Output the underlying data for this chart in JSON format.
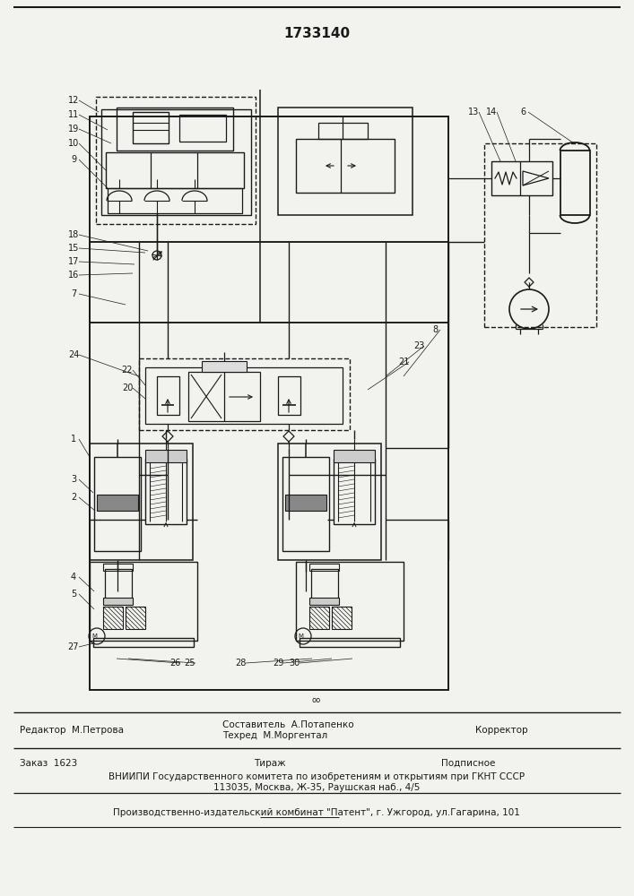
{
  "title": "1733140",
  "bg_color": "#f2f2ee",
  "lc": "#1a1a1a",
  "footer": {
    "editor": "Редактор  М.Петрова",
    "comp1": "Составитель  А.Потапенко",
    "comp2": "Техред  М.Моргентал",
    "corr": "Корректор",
    "order": "Заказ  1623",
    "tirazh": "Тираж",
    "podp": "Подписное",
    "vniip1": "ВНИИПИ Государственного комитета по изобретениям и открытиям при ГКНТ СССР",
    "vniip2": "113035, Москва, Ж-35, Раушская наб., 4/5",
    "patent": "Производственно-издательский комбинат \"Патент\", г. Ужгород, ул.Гагарина, 101"
  }
}
